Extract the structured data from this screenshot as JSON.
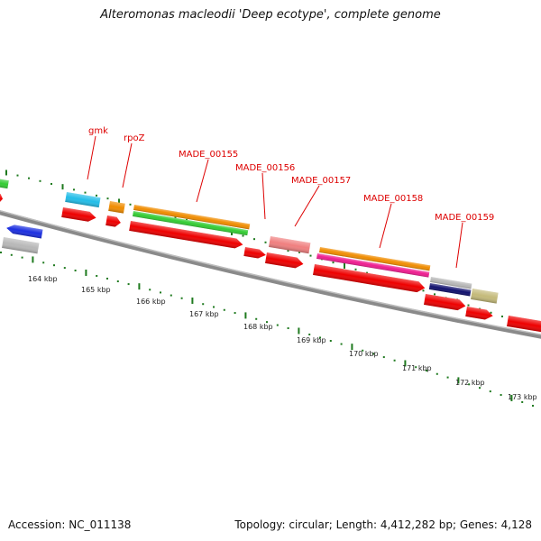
{
  "title": "Alteromonas macleodii 'Deep ecotype', complete genome",
  "footer": {
    "accession": "Accession: NC_011138",
    "summary": "Topology: circular; Length: 4,412,282 bp; Genes: 4,128"
  },
  "tick_labels": [
    "164 kbp",
    "165 kbp",
    "166 kbp",
    "167 kbp",
    "168 kbp",
    "169 kbp",
    "170 kbp",
    "171 kbp",
    "172 kbp",
    "173 kbp"
  ],
  "gene_labels": [
    {
      "name": "gmk",
      "color": "#dd0000"
    },
    {
      "name": "rpoZ",
      "color": "#dd0000"
    },
    {
      "name": "MADE_00155",
      "color": "#dd0000"
    },
    {
      "name": "MADE_00156",
      "color": "#dd0000"
    },
    {
      "name": "MADE_00157",
      "color": "#dd0000"
    },
    {
      "name": "MADE_00158",
      "color": "#dd0000"
    },
    {
      "name": "MADE_00159",
      "color": "#dd0000"
    }
  ],
  "colors": {
    "backbone": "#8a8a8a",
    "tick": "#1f7a1f",
    "cds": "#ee0000",
    "blue": "#1c2fe0",
    "gray": "#b8b8b8",
    "cyan": "#22bde8",
    "orange": "#f08c00",
    "green": "#33cc33",
    "salmon": "#f07f7f",
    "magenta": "#ee1c8f",
    "navy": "#10106e",
    "khaki": "#c4ba7a",
    "label": "#dd0000"
  }
}
